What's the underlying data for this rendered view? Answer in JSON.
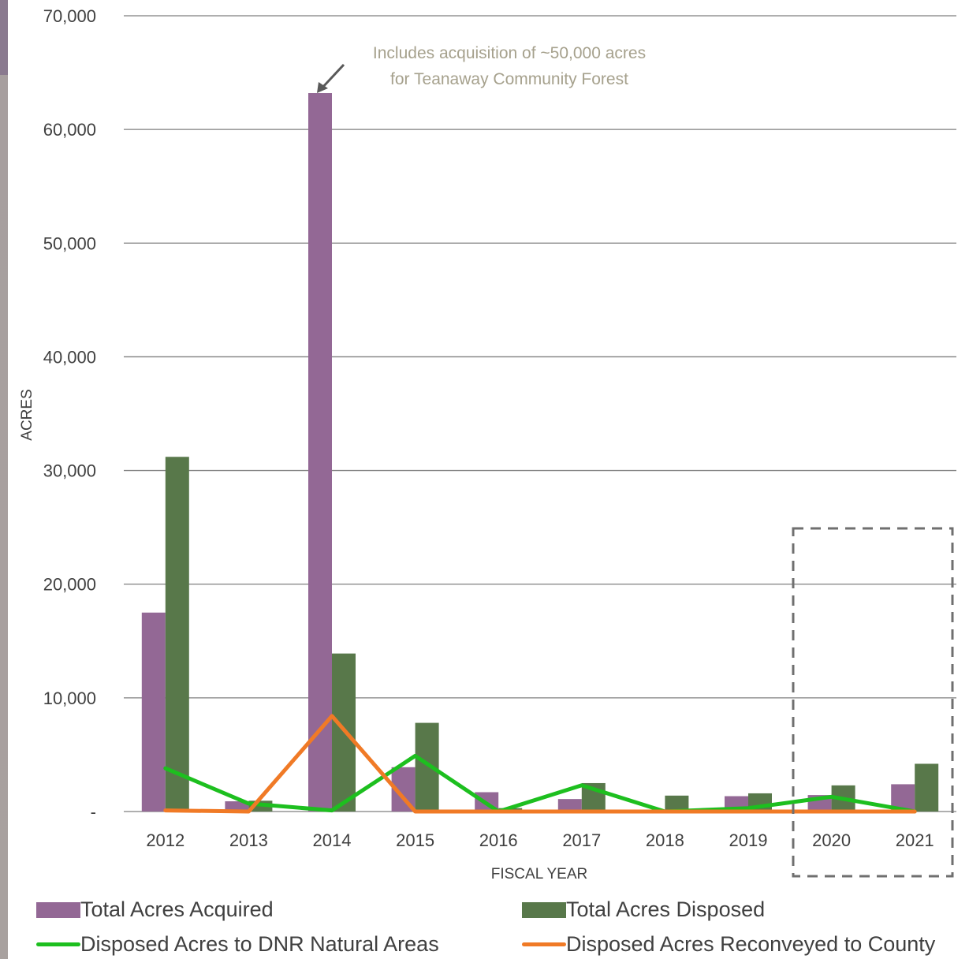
{
  "chart_data": {
    "type": "bar",
    "xlabel": "FISCAL YEAR",
    "ylabel": "ACRES",
    "ylim": [
      0,
      70000
    ],
    "y_ticks": [
      "-",
      "10,000",
      "20,000",
      "30,000",
      "40,000",
      "50,000",
      "60,000",
      "70,000"
    ],
    "grid": "horizontal",
    "legend_position": "bottom",
    "categories": [
      "2012",
      "2013",
      "2014",
      "2015",
      "2016",
      "2017",
      "2018",
      "2019",
      "2020",
      "2021"
    ],
    "series": [
      {
        "name": "Total Acres Acquired",
        "type": "bar",
        "color": "#936895",
        "values": [
          17500,
          900,
          63200,
          3900,
          1700,
          1100,
          100,
          1350,
          1450,
          2400
        ]
      },
      {
        "name": "Total Acres Disposed",
        "type": "bar",
        "color": "#58784a",
        "values": [
          31200,
          950,
          13900,
          7800,
          300,
          2500,
          1400,
          1600,
          2300,
          4200
        ]
      },
      {
        "name": "Disposed Acres to DNR Natural Areas",
        "type": "line",
        "color": "#1dbf1f",
        "values": [
          3800,
          700,
          100,
          4900,
          0,
          2300,
          0,
          300,
          1300,
          0
        ]
      },
      {
        "name": "Disposed Acres Reconveyed to County",
        "type": "line",
        "color": "#f07a26",
        "values": [
          100,
          0,
          8400,
          0,
          0,
          0,
          0,
          0,
          0,
          0
        ]
      }
    ],
    "annotation": {
      "text_line1": "Includes acquisition of ~50,000 acres",
      "text_line2": "for Teanaway Community Forest",
      "category": "2014"
    },
    "highlight_categories": [
      "2020",
      "2021"
    ]
  }
}
